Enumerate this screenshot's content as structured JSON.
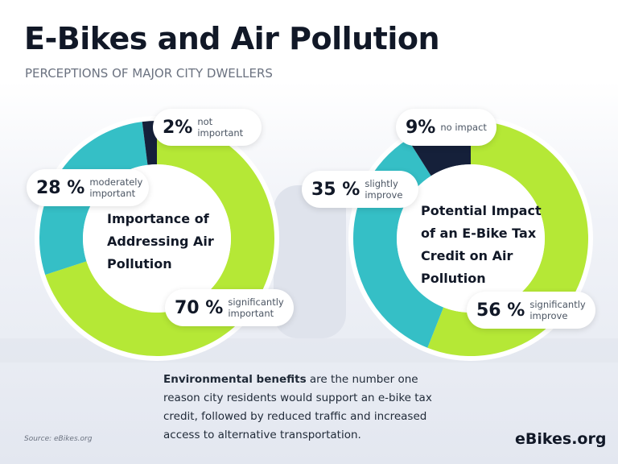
{
  "header": {
    "title": "E-Bikes and Air Pollution",
    "subtitle": "PERCEPTIONS OF MAJOR CITY DWELLERS"
  },
  "chart_data": [
    {
      "type": "pie",
      "donut": true,
      "title": "Importance of Addressing Air Pollution",
      "categories": [
        "significantly important",
        "moderately important",
        "not important"
      ],
      "values": [
        70,
        28,
        2
      ],
      "value_labels": [
        "70 %",
        "28 %",
        "2%"
      ],
      "colors": [
        "#b5e836",
        "#35bfc6",
        "#15203a"
      ]
    },
    {
      "type": "pie",
      "donut": true,
      "title": "Potential Impact of an E-Bike Tax Credit on Air Pollution",
      "categories": [
        "significantly improve",
        "slightly improve",
        "no impact"
      ],
      "values": [
        56,
        35,
        9
      ],
      "value_labels": [
        "56 %",
        "35 %",
        "9%"
      ],
      "colors": [
        "#b5e836",
        "#35bfc6",
        "#15203a"
      ]
    }
  ],
  "footnote": {
    "bold": "Environmental benefits",
    "text": "are the number one reason city residents would support an e-bike tax credit, followed by reduced traffic and increased access to alternative transportation."
  },
  "source": "Source: eBikes.org",
  "logo": "eBikes.org"
}
